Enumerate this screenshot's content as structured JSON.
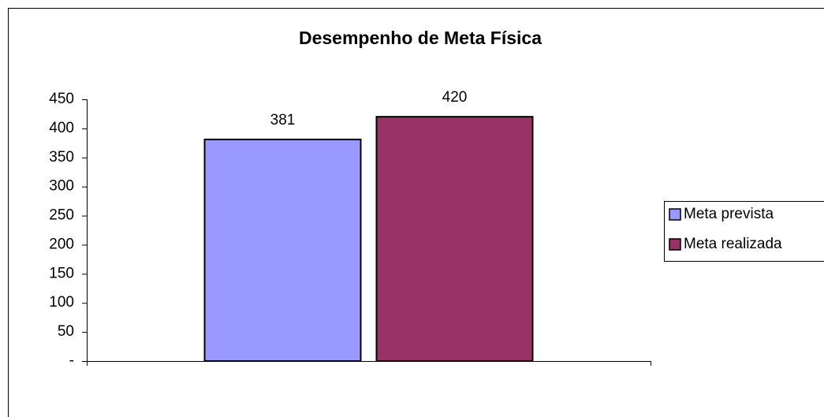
{
  "chart_data": {
    "type": "bar",
    "title": "Desempenho de Meta Física",
    "categories": [
      null
    ],
    "series": [
      {
        "name": "Meta prevista",
        "color": "#9999ff",
        "values": [
          381
        ]
      },
      {
        "name": "Meta realizada",
        "color": "#993366",
        "values": [
          420
        ]
      }
    ],
    "ylim": [
      0,
      450
    ],
    "yticks": [
      {
        "value": 0,
        "label": "-"
      },
      50,
      100,
      150,
      200,
      250,
      300,
      350,
      400,
      450
    ],
    "grid": false,
    "legend": "right"
  }
}
